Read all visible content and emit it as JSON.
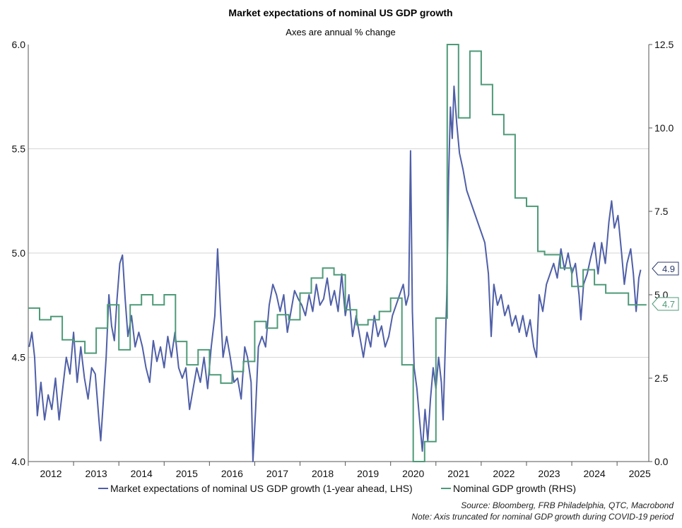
{
  "chart_data": {
    "type": "line",
    "title": "Market expectations of nominal US GDP growth",
    "subtitle": "Axes are annual % change",
    "x_ticks": [
      "2012",
      "2013",
      "2014",
      "2015",
      "2016",
      "2017",
      "2018",
      "2019",
      "2020",
      "2021",
      "2022",
      "2023",
      "2024",
      "2025"
    ],
    "xlim": [
      2011.5,
      2025.2
    ],
    "left_axis": {
      "ylim": [
        4.0,
        6.0
      ],
      "ticks": [
        "4.0",
        "4.5",
        "5.0",
        "5.5",
        "6.0"
      ],
      "tick_values": [
        4.0,
        4.5,
        5.0,
        5.5,
        6.0
      ]
    },
    "right_axis": {
      "ylim": [
        0.0,
        12.5
      ],
      "ticks": [
        "0.0",
        "2.5",
        "5.0",
        "7.5",
        "10.0",
        "12.5"
      ],
      "tick_values": [
        0.0,
        2.5,
        5.0,
        7.5,
        10.0,
        12.5
      ]
    },
    "grid": true,
    "legend_position": "bottom",
    "series": [
      {
        "name": "Market expectations of nominal US GDP growth (1-year ahead, LHS)",
        "axis": "left",
        "color": "#4f5fa8",
        "end_label": "4.9",
        "points": [
          [
            2011.52,
            4.55
          ],
          [
            2011.58,
            4.62
          ],
          [
            2011.64,
            4.5
          ],
          [
            2011.7,
            4.22
          ],
          [
            2011.78,
            4.38
          ],
          [
            2011.86,
            4.2
          ],
          [
            2011.94,
            4.32
          ],
          [
            2012.02,
            4.25
          ],
          [
            2012.1,
            4.4
          ],
          [
            2012.18,
            4.2
          ],
          [
            2012.26,
            4.35
          ],
          [
            2012.34,
            4.5
          ],
          [
            2012.42,
            4.42
          ],
          [
            2012.5,
            4.62
          ],
          [
            2012.58,
            4.38
          ],
          [
            2012.66,
            4.55
          ],
          [
            2012.74,
            4.4
          ],
          [
            2012.82,
            4.3
          ],
          [
            2012.9,
            4.45
          ],
          [
            2012.98,
            4.42
          ],
          [
            2013.06,
            4.2
          ],
          [
            2013.1,
            4.1
          ],
          [
            2013.16,
            4.3
          ],
          [
            2013.22,
            4.5
          ],
          [
            2013.28,
            4.8
          ],
          [
            2013.34,
            4.65
          ],
          [
            2013.4,
            4.58
          ],
          [
            2013.46,
            4.78
          ],
          [
            2013.52,
            4.95
          ],
          [
            2013.58,
            4.99
          ],
          [
            2013.64,
            4.78
          ],
          [
            2013.7,
            4.6
          ],
          [
            2013.78,
            4.7
          ],
          [
            2013.86,
            4.55
          ],
          [
            2013.94,
            4.62
          ],
          [
            2014.02,
            4.55
          ],
          [
            2014.1,
            4.45
          ],
          [
            2014.18,
            4.38
          ],
          [
            2014.26,
            4.58
          ],
          [
            2014.34,
            4.48
          ],
          [
            2014.42,
            4.55
          ],
          [
            2014.5,
            4.45
          ],
          [
            2014.58,
            4.6
          ],
          [
            2014.66,
            4.5
          ],
          [
            2014.74,
            4.62
          ],
          [
            2014.82,
            4.45
          ],
          [
            2014.9,
            4.4
          ],
          [
            2014.98,
            4.45
          ],
          [
            2015.06,
            4.25
          ],
          [
            2015.14,
            4.35
          ],
          [
            2015.22,
            4.45
          ],
          [
            2015.3,
            4.38
          ],
          [
            2015.38,
            4.5
          ],
          [
            2015.46,
            4.35
          ],
          [
            2015.54,
            4.55
          ],
          [
            2015.62,
            4.7
          ],
          [
            2015.68,
            5.02
          ],
          [
            2015.74,
            4.75
          ],
          [
            2015.8,
            4.5
          ],
          [
            2015.88,
            4.6
          ],
          [
            2015.96,
            4.5
          ],
          [
            2016.04,
            4.38
          ],
          [
            2016.12,
            4.4
          ],
          [
            2016.2,
            4.3
          ],
          [
            2016.28,
            4.55
          ],
          [
            2016.34,
            4.5
          ],
          [
            2016.42,
            4.38
          ],
          [
            2016.46,
            4.0
          ],
          [
            2016.52,
            4.25
          ],
          [
            2016.58,
            4.55
          ],
          [
            2016.66,
            4.6
          ],
          [
            2016.74,
            4.55
          ],
          [
            2016.82,
            4.75
          ],
          [
            2016.9,
            4.85
          ],
          [
            2016.98,
            4.8
          ],
          [
            2017.06,
            4.72
          ],
          [
            2017.14,
            4.8
          ],
          [
            2017.22,
            4.62
          ],
          [
            2017.3,
            4.72
          ],
          [
            2017.38,
            4.82
          ],
          [
            2017.46,
            4.78
          ],
          [
            2017.54,
            4.75
          ],
          [
            2017.62,
            4.7
          ],
          [
            2017.7,
            4.8
          ],
          [
            2017.78,
            4.72
          ],
          [
            2017.86,
            4.85
          ],
          [
            2017.94,
            4.75
          ],
          [
            2018.02,
            4.78
          ],
          [
            2018.1,
            4.88
          ],
          [
            2018.18,
            4.75
          ],
          [
            2018.26,
            4.82
          ],
          [
            2018.34,
            4.72
          ],
          [
            2018.42,
            4.9
          ],
          [
            2018.5,
            4.7
          ],
          [
            2018.58,
            4.8
          ],
          [
            2018.66,
            4.6
          ],
          [
            2018.74,
            4.7
          ],
          [
            2018.82,
            4.6
          ],
          [
            2018.9,
            4.5
          ],
          [
            2018.98,
            4.62
          ],
          [
            2019.06,
            4.55
          ],
          [
            2019.14,
            4.7
          ],
          [
            2019.22,
            4.6
          ],
          [
            2019.3,
            4.65
          ],
          [
            2019.38,
            4.55
          ],
          [
            2019.46,
            4.6
          ],
          [
            2019.54,
            4.7
          ],
          [
            2019.62,
            4.75
          ],
          [
            2019.7,
            4.8
          ],
          [
            2019.78,
            4.85
          ],
          [
            2019.84,
            4.75
          ],
          [
            2019.9,
            4.8
          ],
          [
            2019.94,
            5.49
          ],
          [
            2019.98,
            4.72
          ],
          [
            2020.02,
            4.45
          ],
          [
            2020.08,
            4.35
          ],
          [
            2020.14,
            4.2
          ],
          [
            2020.2,
            4.05
          ],
          [
            2020.26,
            4.25
          ],
          [
            2020.32,
            4.1
          ],
          [
            2020.38,
            4.3
          ],
          [
            2020.44,
            4.45
          ],
          [
            2020.5,
            4.35
          ],
          [
            2020.56,
            4.5
          ],
          [
            2020.62,
            4.38
          ],
          [
            2020.66,
            4.2
          ],
          [
            2020.7,
            4.5
          ],
          [
            2020.74,
            4.8
          ],
          [
            2020.78,
            5.35
          ],
          [
            2020.82,
            5.7
          ],
          [
            2020.86,
            5.55
          ],
          [
            2020.9,
            5.8
          ],
          [
            2020.96,
            5.62
          ],
          [
            2021.02,
            5.48
          ],
          [
            2021.1,
            5.4
          ],
          [
            2021.18,
            5.3
          ],
          [
            2021.26,
            5.25
          ],
          [
            2021.34,
            5.2
          ],
          [
            2021.42,
            5.15
          ],
          [
            2021.5,
            5.1
          ],
          [
            2021.58,
            5.05
          ],
          [
            2021.66,
            4.9
          ],
          [
            2021.72,
            4.6
          ],
          [
            2021.78,
            4.85
          ],
          [
            2021.86,
            4.75
          ],
          [
            2021.94,
            4.8
          ],
          [
            2022.02,
            4.7
          ],
          [
            2022.1,
            4.75
          ],
          [
            2022.18,
            4.65
          ],
          [
            2022.26,
            4.7
          ],
          [
            2022.34,
            4.62
          ],
          [
            2022.42,
            4.7
          ],
          [
            2022.5,
            4.6
          ],
          [
            2022.58,
            4.68
          ],
          [
            2022.66,
            4.55
          ],
          [
            2022.72,
            4.5
          ],
          [
            2022.78,
            4.8
          ],
          [
            2022.86,
            4.72
          ],
          [
            2022.94,
            4.85
          ],
          [
            2023.02,
            4.9
          ],
          [
            2023.1,
            4.95
          ],
          [
            2023.18,
            4.88
          ],
          [
            2023.26,
            5.02
          ],
          [
            2023.34,
            4.92
          ],
          [
            2023.42,
            5.0
          ],
          [
            2023.5,
            4.9
          ],
          [
            2023.58,
            4.95
          ],
          [
            2023.66,
            4.8
          ],
          [
            2023.7,
            4.68
          ],
          [
            2023.76,
            4.85
          ],
          [
            2023.84,
            4.9
          ],
          [
            2023.92,
            4.98
          ],
          [
            2024.0,
            5.05
          ],
          [
            2024.08,
            4.9
          ],
          [
            2024.16,
            5.05
          ],
          [
            2024.24,
            4.95
          ],
          [
            2024.32,
            5.15
          ],
          [
            2024.38,
            5.25
          ],
          [
            2024.44,
            5.12
          ],
          [
            2024.52,
            5.18
          ],
          [
            2024.6,
            5.0
          ],
          [
            2024.66,
            4.85
          ],
          [
            2024.72,
            4.95
          ],
          [
            2024.8,
            5.02
          ],
          [
            2024.86,
            4.9
          ],
          [
            2024.92,
            4.72
          ],
          [
            2024.98,
            4.88
          ],
          [
            2025.02,
            4.92
          ]
        ]
      },
      {
        "name": "Nominal GDP growth (RHS)",
        "axis": "right",
        "color": "#4e9a78",
        "end_label": "4.7",
        "step_points": [
          [
            2011.5,
            4.6
          ],
          [
            2011.75,
            4.25
          ],
          [
            2012.0,
            4.35
          ],
          [
            2012.25,
            3.65
          ],
          [
            2012.5,
            3.6
          ],
          [
            2012.75,
            3.25
          ],
          [
            2013.0,
            4.0
          ],
          [
            2013.25,
            4.7
          ],
          [
            2013.5,
            3.35
          ],
          [
            2013.75,
            4.7
          ],
          [
            2014.0,
            5.0
          ],
          [
            2014.25,
            4.7
          ],
          [
            2014.5,
            5.0
          ],
          [
            2014.75,
            3.6
          ],
          [
            2015.0,
            2.9
          ],
          [
            2015.25,
            3.35
          ],
          [
            2015.5,
            2.6
          ],
          [
            2015.75,
            2.35
          ],
          [
            2016.0,
            2.7
          ],
          [
            2016.25,
            3.0
          ],
          [
            2016.5,
            4.2
          ],
          [
            2016.75,
            4.0
          ],
          [
            2017.0,
            4.4
          ],
          [
            2017.25,
            4.25
          ],
          [
            2017.5,
            5.05
          ],
          [
            2017.75,
            5.5
          ],
          [
            2018.0,
            5.8
          ],
          [
            2018.25,
            5.6
          ],
          [
            2018.5,
            4.55
          ],
          [
            2018.75,
            4.1
          ],
          [
            2019.0,
            4.25
          ],
          [
            2019.25,
            4.5
          ],
          [
            2019.5,
            4.9
          ],
          [
            2019.75,
            2.9
          ],
          [
            2020.0,
            0.0
          ],
          [
            2020.25,
            0.6
          ],
          [
            2020.5,
            4.3
          ],
          [
            2020.75,
            12.5
          ],
          [
            2021.0,
            10.3
          ],
          [
            2021.25,
            12.3
          ],
          [
            2021.5,
            11.3
          ],
          [
            2021.75,
            10.4
          ],
          [
            2022.0,
            9.8
          ],
          [
            2022.25,
            7.9
          ],
          [
            2022.5,
            7.65
          ],
          [
            2022.75,
            6.3
          ],
          [
            2022.9,
            6.2
          ],
          [
            2023.0,
            6.2
          ],
          [
            2023.25,
            5.8
          ],
          [
            2023.5,
            5.25
          ],
          [
            2023.75,
            5.75
          ],
          [
            2024.0,
            5.3
          ],
          [
            2024.25,
            5.05
          ],
          [
            2024.5,
            5.05
          ],
          [
            2024.75,
            4.7
          ],
          [
            2025.0,
            4.7
          ]
        ]
      }
    ]
  },
  "source_note": {
    "line1": "Source: Bloomberg, FRB Philadelphia, QTC, Macrobond",
    "line2": "Note: Axis truncated for nominal GDP growth during COVID-19 period"
  }
}
